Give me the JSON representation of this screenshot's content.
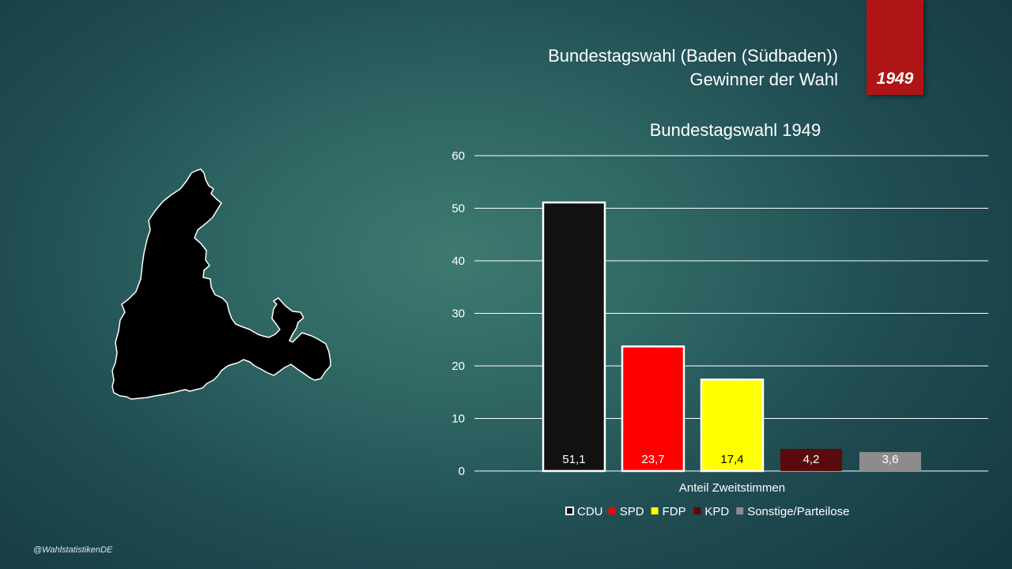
{
  "header": {
    "line1": "Bundestagswahl (Baden (Südbaden))",
    "line2": "Gewinner der Wahl",
    "year_badge": "1949"
  },
  "map": {
    "region": "Baden (Südbaden)",
    "icon": "region-map-silhouette"
  },
  "credit": "@WahlstatistikenDE",
  "colors": {
    "ribbon": "#b01515",
    "CDU": "#111111",
    "SPD": "#ff0000",
    "FDP": "#ffff00",
    "KPD": "#5a0a0a",
    "Sonstige/Parteilose": "#8c8c8c"
  },
  "chart_data": {
    "type": "bar",
    "title": "Bundestagswahl 1949",
    "xlabel": "Anteil Zweitstimmen",
    "ylabel": "",
    "ylim": [
      0,
      60
    ],
    "yticks": [
      "0",
      "10",
      "20",
      "30",
      "40",
      "50",
      "60"
    ],
    "grid": true,
    "legend_position": "bottom",
    "series": [
      {
        "name": "CDU",
        "value": 51.1,
        "label": "51,1",
        "color": "#111111"
      },
      {
        "name": "SPD",
        "value": 23.7,
        "label": "23,7",
        "color": "#ff0000"
      },
      {
        "name": "FDP",
        "value": 17.4,
        "label": "17,4",
        "color": "#ffff00"
      },
      {
        "name": "KPD",
        "value": 4.2,
        "label": "4,2",
        "color": "#5a0a0a"
      },
      {
        "name": "Sonstige/Parteilose",
        "value": 3.6,
        "label": "3,6",
        "color": "#8c8c8c"
      }
    ]
  }
}
